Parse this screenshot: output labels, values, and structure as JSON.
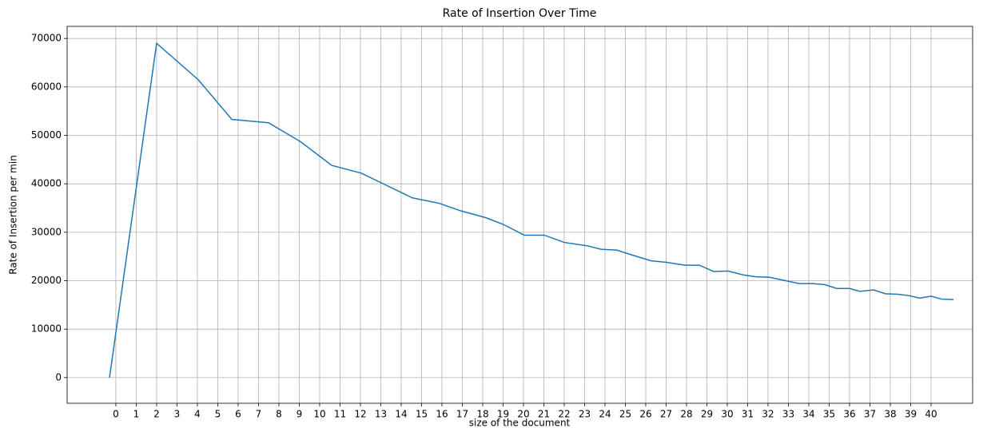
{
  "chart_data": {
    "type": "line",
    "title": "Rate of Insertion Over Time",
    "x_label": "size of the document",
    "y_label": "Rate of Insertion per min",
    "x": [
      -0.31,
      2.0,
      4.04,
      5.69,
      7.49,
      9.06,
      10.59,
      12.04,
      13.22,
      14.55,
      15.84,
      16.94,
      18.16,
      19.02,
      20.04,
      21.02,
      22.0,
      23.14,
      23.8,
      24.59,
      25.33,
      26.27,
      27.02,
      27.92,
      28.63,
      29.33,
      30.04,
      30.78,
      31.41,
      32.08,
      32.86,
      33.53,
      34.16,
      34.78,
      35.37,
      36.0,
      36.51,
      37.18,
      37.76,
      38.39,
      38.94,
      39.45,
      40.0,
      40.51,
      41.1
    ],
    "series": [
      {
        "name": "Rate of Insertion",
        "color": "#1f77b4",
        "values": [
          0,
          69000,
          61500,
          53300,
          52600,
          48700,
          43800,
          42200,
          39800,
          37100,
          36000,
          34400,
          33000,
          31600,
          29400,
          29400,
          27900,
          27200,
          26500,
          26300,
          25300,
          24100,
          23800,
          23200,
          23200,
          21900,
          22000,
          21200,
          20800,
          20700,
          20000,
          19400,
          19400,
          19200,
          18400,
          18400,
          17800,
          18100,
          17300,
          17200,
          16900,
          16400,
          16800,
          16200,
          16100
        ]
      }
    ],
    "xlim": [
      -2.39,
      42.04
    ],
    "ylim": [
      -5300,
      72500
    ],
    "xticks": [
      0,
      1,
      2,
      3,
      4,
      5,
      6,
      7,
      8,
      9,
      10,
      11,
      12,
      13,
      14,
      15,
      16,
      17,
      18,
      19,
      20,
      21,
      22,
      23,
      24,
      25,
      26,
      27,
      28,
      29,
      30,
      31,
      32,
      33,
      34,
      35,
      36,
      37,
      38,
      39,
      40
    ],
    "yticks": [
      0,
      10000,
      20000,
      30000,
      40000,
      50000,
      60000,
      70000
    ],
    "grid": true
  }
}
